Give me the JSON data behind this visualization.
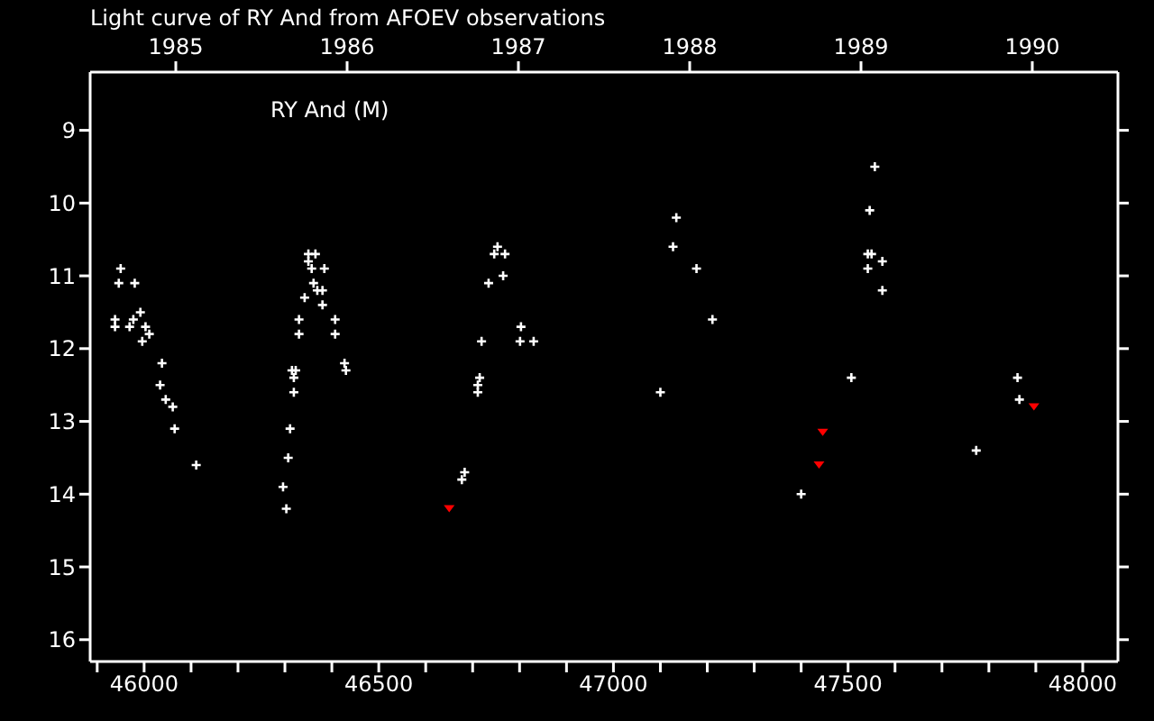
{
  "chart_data": {
    "type": "scatter",
    "title": "Light curve of RY And from AFOEV observations",
    "annotations": [
      "RY And (M)"
    ],
    "marker": "cross",
    "xlim": [
      45885,
      48075
    ],
    "xticks": [
      {
        "value": 45900,
        "label": null
      },
      46000,
      {
        "value": 46100,
        "label": null
      },
      {
        "value": 46200,
        "label": null
      },
      {
        "value": 46300,
        "label": null
      },
      {
        "value": 46400,
        "label": null
      },
      46500,
      {
        "value": 46600,
        "label": null
      },
      {
        "value": 46700,
        "label": null
      },
      {
        "value": 46800,
        "label": null
      },
      {
        "value": 46900,
        "label": null
      },
      47000,
      {
        "value": 47100,
        "label": null
      },
      {
        "value": 47200,
        "label": null
      },
      {
        "value": 47300,
        "label": null
      },
      {
        "value": 47400,
        "label": null
      },
      47500,
      {
        "value": 47600,
        "label": null
      },
      {
        "value": 47700,
        "label": null
      },
      {
        "value": 47800,
        "label": null
      },
      {
        "value": 47900,
        "label": null
      },
      48000
    ],
    "x2lim": [
      1984.5,
      1990.5
    ],
    "x2ticks": [
      1985,
      1986,
      1987,
      1988,
      1989,
      1990
    ],
    "ylim": [
      16.3,
      8.2
    ],
    "yticks": [
      9,
      10,
      11,
      12,
      13,
      14,
      15,
      16
    ],
    "series": [
      {
        "color": "#ffffff",
        "x": [
          45950,
          45946,
          45980,
          45938,
          45938,
          45977,
          45969,
          45992,
          46003,
          46011,
          45996,
          46038,
          46034,
          46046,
          46061,
          46065,
          46111,
          46350,
          46365,
          46350,
          46357,
          46384,
          46361,
          46369,
          46380,
          46342,
          46380,
          46330,
          46407,
          46330,
          46407,
          46427,
          46430,
          46315,
          46323,
          46319,
          46319,
          46311,
          46307,
          46296,
          46303,
          47134,
          46753,
          46746,
          46769,
          47127,
          47177,
          46765,
          46734,
          47211,
          46803,
          46719,
          46801,
          46830,
          46715,
          46711,
          46711,
          47100,
          46683,
          46677,
          47557,
          47546,
          47542,
          47550,
          47573,
          47542,
          47573,
          47507,
          47861,
          47865,
          47773,
          47400
        ],
        "values": [
          10.9,
          11.1,
          11.1,
          11.6,
          11.7,
          11.6,
          11.7,
          11.5,
          11.7,
          11.8,
          11.9,
          12.2,
          12.5,
          12.7,
          12.8,
          13.1,
          13.6,
          10.7,
          10.7,
          10.8,
          10.9,
          10.9,
          11.1,
          11.2,
          11.2,
          11.3,
          11.4,
          11.6,
          11.6,
          11.8,
          11.8,
          12.2,
          12.3,
          12.3,
          12.3,
          12.4,
          12.6,
          13.1,
          13.5,
          13.9,
          14.2,
          10.2,
          10.6,
          10.7,
          10.7,
          10.6,
          10.9,
          11.0,
          11.1,
          11.6,
          11.7,
          11.9,
          11.9,
          11.9,
          12.4,
          12.5,
          12.6,
          12.6,
          13.7,
          13.8,
          9.5,
          10.1,
          10.7,
          10.7,
          10.8,
          10.9,
          11.2,
          12.4,
          12.4,
          12.7,
          13.4,
          14.0
        ]
      },
      {
        "color": "#ff0000",
        "marker": "triangle",
        "x": [
          46650,
          47446,
          47438,
          47896
        ],
        "values": [
          14.2,
          13.15,
          13.6,
          12.8
        ]
      }
    ]
  }
}
